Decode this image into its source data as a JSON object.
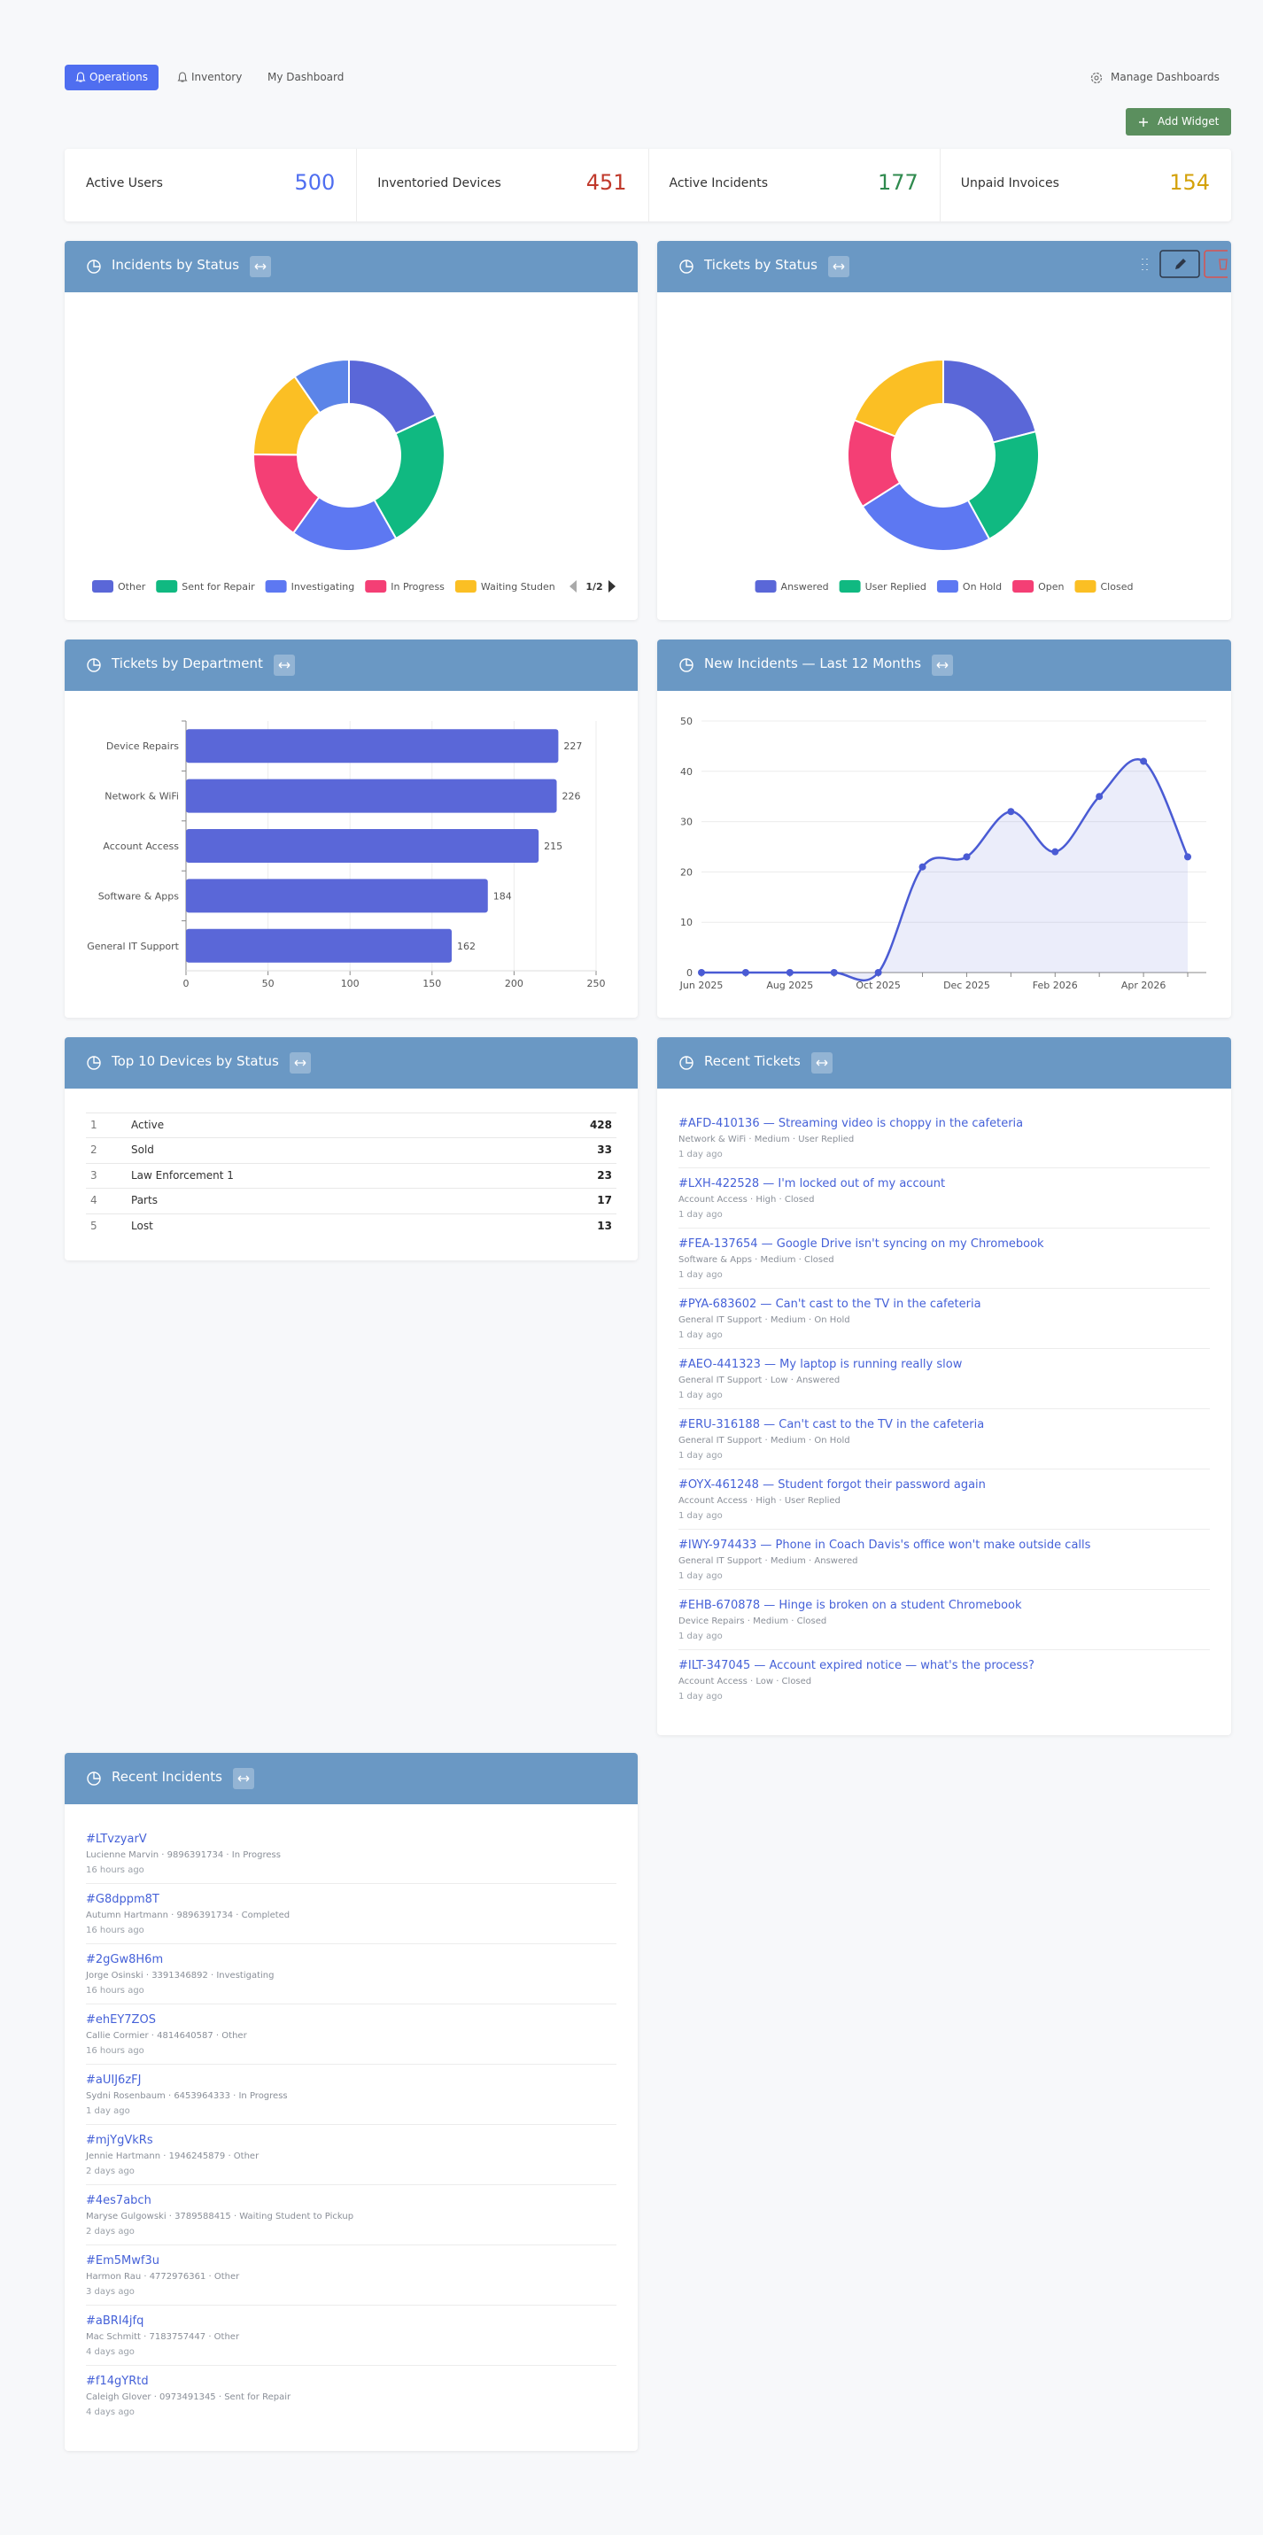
{
  "nav": {
    "tabs": [
      "Operations",
      "Inventory",
      "My Dashboard"
    ],
    "manage": "Manage Dashboards",
    "add_widget": "Add Widget"
  },
  "stats": [
    {
      "label": "Active Users",
      "value": 500,
      "color": "#4f6ef0"
    },
    {
      "label": "Inventoried Devices",
      "value": 451,
      "color": "#c0392b"
    },
    {
      "label": "Active Incidents",
      "value": 177,
      "color": "#2f8a4e"
    },
    {
      "label": "Unpaid Invoices",
      "value": 154,
      "color": "#d4a20a"
    }
  ],
  "widgets": {
    "incidents_by_status": {
      "title": "Incidents by Status",
      "legend_page": "1/2",
      "chart_data": {
        "type": "donut",
        "categories": [
          "Other",
          "Sent for Repair",
          "Investigating",
          "In Progress",
          "Waiting Student to Pickup",
          null
        ],
        "values": [
          32,
          42,
          32,
          27,
          27,
          17
        ],
        "colors": [
          "#5a67d8",
          "#10b981",
          "#5d78f2",
          "#f43f75",
          "#fbbf24",
          "#5b84e8"
        ]
      }
    },
    "tickets_by_status": {
      "title": "Tickets by Status",
      "chart_data": {
        "type": "donut",
        "categories": [
          "Answered",
          "User Replied",
          "On Hold",
          "Open",
          "Closed"
        ],
        "values": [
          21,
          21,
          24,
          15,
          19
        ],
        "colors": [
          "#5a67d8",
          "#10b981",
          "#5d78f2",
          "#f43f75",
          "#fbbf24"
        ]
      }
    },
    "tickets_by_department": {
      "title": "Tickets by Department",
      "chart_data": {
        "type": "hbar",
        "categories": [
          "Device Repairs",
          "Network & WiFi",
          "Account Access",
          "Software & Apps",
          "General IT Support"
        ],
        "values": [
          227,
          226,
          215,
          184,
          162
        ],
        "color": "#5a67d8",
        "xlim": [
          0,
          250
        ],
        "xticks": [
          0,
          50,
          100,
          150,
          200,
          250
        ],
        "grid": true
      }
    },
    "new_incidents": {
      "title": "New Incidents — Last 12 Months",
      "chart_data": {
        "type": "line",
        "categories": [
          "Jun 2025",
          null,
          "Aug 2025",
          null,
          "Oct 2025",
          null,
          "Dec 2025",
          null,
          "Feb 2026",
          null,
          "Apr 2026",
          null
        ],
        "values": [
          0,
          0,
          0,
          0,
          0,
          21,
          23,
          32,
          24,
          35,
          42,
          23
        ],
        "color": "#4a5bd4",
        "ylim": [
          0,
          50
        ],
        "yticks": [
          0,
          10,
          20,
          30,
          40,
          50
        ],
        "grid": true
      }
    },
    "top_devices": {
      "title": "Top 10 Devices by Status",
      "rows": [
        {
          "rank": 1,
          "name": "Active",
          "count": 428
        },
        {
          "rank": 2,
          "name": "Sold",
          "count": 33
        },
        {
          "rank": 3,
          "name": "Law Enforcement 1",
          "count": 23
        },
        {
          "rank": 4,
          "name": "Parts",
          "count": 17
        },
        {
          "rank": 5,
          "name": "Lost",
          "count": 13
        }
      ]
    },
    "recent_tickets": {
      "title": "Recent Tickets",
      "items": [
        {
          "title": "#AFD-410136 — Streaming video is choppy in the cafeteria",
          "meta": "Network & WiFi · Medium · User Replied",
          "time": "1 day ago"
        },
        {
          "title": "#LXH-422528 — I'm locked out of my account",
          "meta": "Account Access · High · Closed",
          "time": "1 day ago"
        },
        {
          "title": "#FEA-137654 — Google Drive isn't syncing on my Chromebook",
          "meta": "Software & Apps · Medium · Closed",
          "time": "1 day ago"
        },
        {
          "title": "#PYA-683602 — Can't cast to the TV in the cafeteria",
          "meta": "General IT Support · Medium · On Hold",
          "time": "1 day ago"
        },
        {
          "title": "#AEO-441323 — My laptop is running really slow",
          "meta": "General IT Support · Low · Answered",
          "time": "1 day ago"
        },
        {
          "title": "#ERU-316188 — Can't cast to the TV in the cafeteria",
          "meta": "General IT Support · Medium · On Hold",
          "time": "1 day ago"
        },
        {
          "title": "#OYX-461248 — Student forgot their password again",
          "meta": "Account Access · High · User Replied",
          "time": "1 day ago"
        },
        {
          "title": "#IWY-974433 — Phone in Coach Davis's office won't make outside calls",
          "meta": "General IT Support · Medium · Answered",
          "time": "1 day ago"
        },
        {
          "title": "#EHB-670878 — Hinge is broken on a student Chromebook",
          "meta": "Device Repairs · Medium · Closed",
          "time": "1 day ago"
        },
        {
          "title": "#ILT-347045 — Account expired notice — what's the process?",
          "meta": "Account Access · Low · Closed",
          "time": "1 day ago"
        }
      ]
    },
    "recent_incidents": {
      "title": "Recent Incidents",
      "items": [
        {
          "title": "#LTvzyarV",
          "meta": "Lucienne Marvin · 9896391734 · In Progress",
          "time": "16 hours ago"
        },
        {
          "title": "#G8dppm8T",
          "meta": "Autumn Hartmann · 9896391734 · Completed",
          "time": "16 hours ago"
        },
        {
          "title": "#2gGw8H6m",
          "meta": "Jorge Osinski · 3391346892 · Investigating",
          "time": "16 hours ago"
        },
        {
          "title": "#ehEY7ZOS",
          "meta": "Callie Cormier · 4814640587 · Other",
          "time": "16 hours ago"
        },
        {
          "title": "#aUIJ6zFJ",
          "meta": "Sydni Rosenbaum · 6453964333 · In Progress",
          "time": "1 day ago"
        },
        {
          "title": "#mjYgVkRs",
          "meta": "Jennie Hartmann · 1946245879 · Other",
          "time": "2 days ago"
        },
        {
          "title": "#4es7abch",
          "meta": "Maryse Gulgowski · 3789588415 · Waiting Student to Pickup",
          "time": "2 days ago"
        },
        {
          "title": "#Em5Mwf3u",
          "meta": "Harmon Rau · 4772976361 · Other",
          "time": "3 days ago"
        },
        {
          "title": "#aBRI4jfq",
          "meta": "Mac Schmitt · 7183757447 · Other",
          "time": "4 days ago"
        },
        {
          "title": "#f14gYRtd",
          "meta": "Caleigh Glover · 0973491345 · Sent for Repair",
          "time": "4 days ago"
        }
      ]
    }
  }
}
